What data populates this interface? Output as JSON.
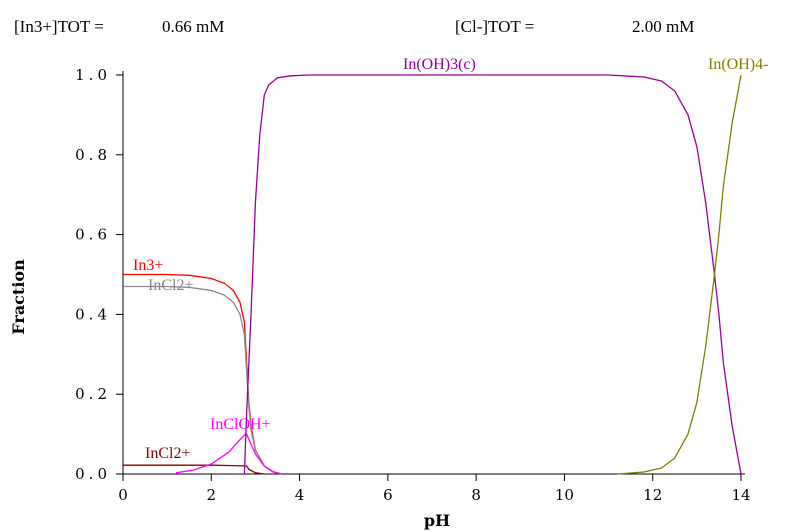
{
  "header": {
    "in_label": "[In3+]TOT =",
    "in_value": "0.66 mM",
    "cl_label": "[Cl-]TOT =",
    "cl_value": "2.00 mM"
  },
  "chart_data": {
    "type": "line",
    "xlabel": "pH",
    "ylabel": "Fraction",
    "xlim": [
      0,
      14
    ],
    "ylim": [
      0,
      1
    ],
    "x_ticks": [
      "0",
      "2",
      "4",
      "6",
      "8",
      "10",
      "12",
      "14"
    ],
    "y_ticks": [
      "0.0",
      "0.2",
      "0.4",
      "0.6",
      "0.8",
      "1.0"
    ],
    "grid": false,
    "series": [
      {
        "name": "In3+",
        "color": "#ff0000",
        "x": [
          0,
          1,
          1.5,
          2,
          2.3,
          2.5,
          2.65,
          2.75,
          2.8,
          2.85,
          2.9,
          3.0,
          3.2,
          3.4,
          3.6
        ],
        "y": [
          0.5,
          0.5,
          0.498,
          0.49,
          0.478,
          0.46,
          0.43,
          0.38,
          0.28,
          0.18,
          0.12,
          0.06,
          0.02,
          0.005,
          0
        ]
      },
      {
        "name": "InCl2+",
        "color": "#888888",
        "x": [
          0,
          1,
          1.5,
          2,
          2.3,
          2.5,
          2.65,
          2.75,
          2.8,
          2.85,
          2.9,
          3.0,
          3.2,
          3.4,
          3.6
        ],
        "y": [
          0.47,
          0.47,
          0.468,
          0.46,
          0.448,
          0.43,
          0.4,
          0.35,
          0.26,
          0.17,
          0.11,
          0.06,
          0.02,
          0.005,
          0
        ]
      },
      {
        "name": "InCl2+",
        "color": "#8b0000",
        "x": [
          0,
          1,
          2,
          2.5,
          2.8,
          2.85,
          3.0,
          3.2
        ],
        "y": [
          0.022,
          0.022,
          0.022,
          0.021,
          0.02,
          0.012,
          0.003,
          0
        ]
      },
      {
        "name": "InClOH+",
        "color": "#ff00ff",
        "x": [
          1.2,
          1.6,
          2.0,
          2.4,
          2.6,
          2.75,
          2.8,
          2.9,
          3.0,
          3.2,
          3.4,
          3.6
        ],
        "y": [
          0.003,
          0.01,
          0.025,
          0.055,
          0.08,
          0.098,
          0.1,
          0.075,
          0.05,
          0.02,
          0.006,
          0
        ]
      },
      {
        "name": "In(OH)3(c)",
        "color": "#990099",
        "x": [
          2.75,
          2.8,
          2.9,
          3.0,
          3.1,
          3.2,
          3.3,
          3.5,
          3.8,
          4.2,
          5,
          8,
          11,
          11.8,
          12.2,
          12.5,
          12.8,
          13.0,
          13.2,
          13.4,
          13.5,
          13.6,
          13.8,
          14
        ],
        "y": [
          0,
          0.15,
          0.4,
          0.68,
          0.85,
          0.95,
          0.975,
          0.993,
          0.998,
          1.0,
          1.0,
          1.0,
          1.0,
          0.995,
          0.985,
          0.96,
          0.9,
          0.82,
          0.68,
          0.5,
          0.4,
          0.28,
          0.12,
          0
        ]
      },
      {
        "name": "In(OH)4-",
        "color": "#808000",
        "x": [
          11.2,
          11.8,
          12.2,
          12.5,
          12.8,
          13.0,
          13.2,
          13.4,
          13.5,
          13.6,
          13.8,
          14
        ],
        "y": [
          0,
          0.005,
          0.015,
          0.04,
          0.1,
          0.18,
          0.32,
          0.5,
          0.6,
          0.72,
          0.88,
          1.0
        ]
      }
    ],
    "labels": [
      {
        "text": "In3+",
        "color": "#ff0000"
      },
      {
        "text": "InCl2+",
        "color": "#888888"
      },
      {
        "text": "InCl2+",
        "color": "#8b0000"
      },
      {
        "text": "InClOH+",
        "color": "#ff00ff"
      },
      {
        "text": "In(OH)3(c)",
        "color": "#990099"
      },
      {
        "text": "In(OH)4-",
        "color": "#808000"
      }
    ]
  }
}
